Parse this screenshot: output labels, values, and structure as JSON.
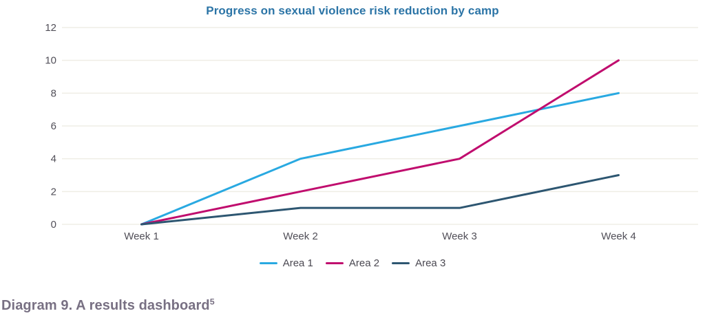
{
  "chart_data": {
    "type": "line",
    "title": "Progress on sexual violence risk reduction by camp",
    "categories": [
      "Week 1",
      "Week 2",
      "Week 3",
      "Week 4"
    ],
    "series": [
      {
        "name": "Area 1",
        "values": [
          0,
          4,
          6,
          8
        ],
        "color": "#29a9e1"
      },
      {
        "name": "Area 2",
        "values": [
          0,
          2,
          4,
          10
        ],
        "color": "#c00d6e"
      },
      {
        "name": "Area 3",
        "values": [
          0,
          1,
          1,
          3
        ],
        "color": "#2d5671"
      }
    ],
    "xlabel": "",
    "ylabel": "",
    "ylim": [
      0,
      12
    ],
    "yticks": [
      0,
      2,
      4,
      6,
      8,
      10,
      12
    ],
    "grid": true,
    "legend_position": "bottom"
  },
  "caption": {
    "text": "Diagram 9. A results dashboard",
    "superscript": "5"
  },
  "colors": {
    "title": "#2b74a6",
    "axis_text": "#514f58",
    "gridline": "#efede5",
    "legend_text": "#4a4851",
    "caption": "#787083",
    "background": "#ffffff"
  }
}
